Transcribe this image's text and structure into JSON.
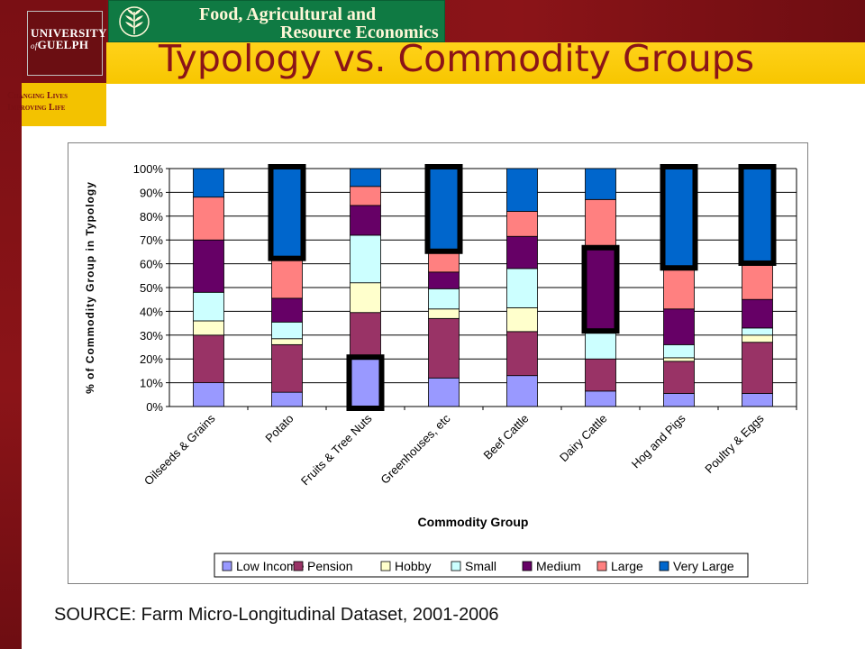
{
  "header": {
    "university_name_line1": "UNIVERSITY",
    "university_name_of": "of",
    "university_name_line2": "GUELPH",
    "tagline_line1": "Changing Lives",
    "tagline_line2": "Improving Life",
    "department_line1": "Food, Agricultural and",
    "department_line2": "Resource Economics"
  },
  "slide": {
    "title": "Typology vs. Commodity Groups",
    "source": "SOURCE: Farm Micro-Longitudinal Dataset, 2001-2006"
  },
  "colors": {
    "banner_red": "#8b1418",
    "gold": "#f7c600",
    "fare_green": "#0f7a43"
  },
  "chart_data": {
    "type": "bar",
    "stacked": true,
    "percent": true,
    "xlabel": "Commodity Group",
    "ylabel": "% of Commodity Group in Typology",
    "ylim": [
      0,
      100
    ],
    "yticks": [
      "0%",
      "10%",
      "20%",
      "30%",
      "40%",
      "50%",
      "60%",
      "70%",
      "80%",
      "90%",
      "100%"
    ],
    "grid": true,
    "legend_position": "bottom",
    "categories": [
      "Oilseeds & Grains",
      "Potato",
      "Fruits & Tree Nuts",
      "Greenhouses, etc",
      "Beef Cattle",
      "Dairy Cattle",
      "Hog and Pigs",
      "Poultry & Eggs"
    ],
    "series": [
      {
        "name": "Low Income",
        "color": "#9999ff",
        "values": [
          10,
          6,
          20,
          12,
          13,
          6.5,
          5.5,
          5.5
        ]
      },
      {
        "name": "Pension",
        "color": "#993366",
        "values": [
          20,
          20,
          19.5,
          25,
          18.5,
          13.5,
          13.5,
          21.5
        ]
      },
      {
        "name": "Hobby",
        "color": "#ffffcc",
        "values": [
          6,
          2.5,
          12.5,
          4,
          10,
          0,
          1.5,
          3
        ]
      },
      {
        "name": "Small",
        "color": "#ccffff",
        "values": [
          12,
          7,
          20,
          8.5,
          16.5,
          12.5,
          5.5,
          3
        ]
      },
      {
        "name": "Medium",
        "color": "#660066",
        "values": [
          22,
          10,
          12.5,
          7,
          13.5,
          33.5,
          15,
          12
        ]
      },
      {
        "name": "Large",
        "color": "#ff8080",
        "values": [
          18,
          17.5,
          8,
          9.5,
          10.5,
          21,
          18,
          16
        ]
      },
      {
        "name": "Very Large",
        "color": "#0066cc",
        "values": [
          12,
          37,
          7.5,
          34,
          18,
          13,
          41,
          39
        ]
      }
    ],
    "highlights": [
      {
        "category": "Potato",
        "series": "Very Large"
      },
      {
        "category": "Fruits & Tree Nuts",
        "series": "Low Income"
      },
      {
        "category": "Greenhouses, etc",
        "series": "Very Large"
      },
      {
        "category": "Dairy Cattle",
        "series": "Medium"
      },
      {
        "category": "Hog and Pigs",
        "series": "Very Large"
      },
      {
        "category": "Poultry & Eggs",
        "series": "Very Large"
      }
    ]
  }
}
